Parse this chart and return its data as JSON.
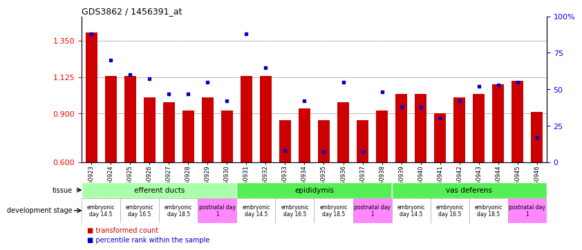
{
  "title": "GDS3862 / 1456391_at",
  "samples": [
    "GSM560923",
    "GSM560924",
    "GSM560925",
    "GSM560926",
    "GSM560927",
    "GSM560928",
    "GSM560929",
    "GSM560930",
    "GSM560931",
    "GSM560932",
    "GSM560933",
    "GSM560934",
    "GSM560935",
    "GSM560936",
    "GSM560937",
    "GSM560938",
    "GSM560939",
    "GSM560940",
    "GSM560941",
    "GSM560942",
    "GSM560943",
    "GSM560944",
    "GSM560945",
    "GSM560946"
  ],
  "red_values": [
    1.4,
    1.13,
    1.13,
    1.0,
    0.97,
    0.92,
    1.0,
    0.92,
    1.13,
    1.13,
    0.86,
    0.93,
    0.86,
    0.97,
    0.86,
    0.92,
    1.02,
    1.02,
    0.9,
    1.0,
    1.02,
    1.08,
    1.1,
    0.91
  ],
  "blue_values_pct": [
    88,
    70,
    60,
    57,
    47,
    47,
    55,
    42,
    88,
    65,
    8,
    42,
    7,
    55,
    7,
    48,
    38,
    38,
    30,
    42,
    52,
    53,
    55,
    17
  ],
  "ylim_left": [
    0.6,
    1.5
  ],
  "ylim_right": [
    0,
    100
  ],
  "yticks_left": [
    0.6,
    0.9,
    1.125,
    1.35
  ],
  "yticks_right": [
    0,
    25,
    50,
    75,
    100
  ],
  "bar_color": "#cc0000",
  "dot_color": "#0000cc",
  "baseline": 0.6,
  "tissue_groups": [
    {
      "label": "efferent ducts",
      "start": 0,
      "end": 7,
      "color": "#aaffaa"
    },
    {
      "label": "epididymis",
      "start": 8,
      "end": 15,
      "color": "#55ee55"
    },
    {
      "label": "vas deferens",
      "start": 16,
      "end": 23,
      "color": "#55ee55"
    }
  ],
  "dev_stage_map": [
    {
      "start": 0,
      "end": 1,
      "label": "embryonic\nday 14.5",
      "color": "#ffffff"
    },
    {
      "start": 2,
      "end": 3,
      "label": "embryonic\nday 16.5",
      "color": "#ffffff"
    },
    {
      "start": 4,
      "end": 5,
      "label": "embryonic\nday 18.5",
      "color": "#ffffff"
    },
    {
      "start": 6,
      "end": 7,
      "label": "postnatal day\n1",
      "color": "#ff88ff"
    },
    {
      "start": 8,
      "end": 9,
      "label": "embryonic\nday 14.5",
      "color": "#ffffff"
    },
    {
      "start": 10,
      "end": 11,
      "label": "embryonic\nday 16.5",
      "color": "#ffffff"
    },
    {
      "start": 12,
      "end": 13,
      "label": "embryonic\nday 18.5",
      "color": "#ffffff"
    },
    {
      "start": 14,
      "end": 15,
      "label": "postnatal day\n1",
      "color": "#ff88ff"
    },
    {
      "start": 16,
      "end": 17,
      "label": "embryonic\nday 14.5",
      "color": "#ffffff"
    },
    {
      "start": 18,
      "end": 19,
      "label": "embryonic\nday 16.5",
      "color": "#ffffff"
    },
    {
      "start": 20,
      "end": 21,
      "label": "embryonic\nday 18.5",
      "color": "#ffffff"
    },
    {
      "start": 22,
      "end": 23,
      "label": "postnatal day\n1",
      "color": "#ff88ff"
    }
  ]
}
